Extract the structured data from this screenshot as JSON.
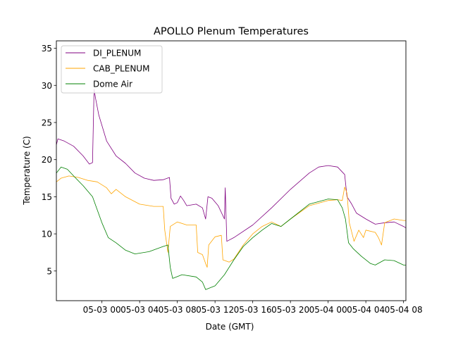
{
  "chart_data": {
    "type": "line",
    "title": "APOLLO Plenum Temperatures",
    "xlabel": "Date (GMT)",
    "ylabel": "Temperature (C)",
    "xlim": [
      "2019-05-02 19:10",
      "2019-05-04 08:15"
    ],
    "ylim": [
      1,
      36
    ],
    "x_ticks": [
      {
        "t": "2019-05-03 00:00",
        "label": "05-03 00"
      },
      {
        "t": "2019-05-03 04:00",
        "label": "05-03 04"
      },
      {
        "t": "2019-05-03 08:00",
        "label": "05-03 08"
      },
      {
        "t": "2019-05-03 12:00",
        "label": "05-03 12"
      },
      {
        "t": "2019-05-03 16:00",
        "label": "05-03 16"
      },
      {
        "t": "2019-05-03 20:00",
        "label": "05-03 20"
      },
      {
        "t": "2019-05-04 00:00",
        "label": "05-04 00"
      },
      {
        "t": "2019-05-04 04:00",
        "label": "05-04 04"
      },
      {
        "t": "2019-05-04 08:00",
        "label": "05-04 08"
      }
    ],
    "y_ticks": [
      5,
      10,
      15,
      20,
      25,
      30,
      35
    ],
    "grid": false,
    "legend_position": "top-left",
    "series": [
      {
        "name": "DI_PLENUM",
        "color": "#800080",
        "points": [
          [
            "2019-05-02 19:10",
            22.0
          ],
          [
            "2019-05-02 19:20",
            22.8
          ],
          [
            "2019-05-02 20:00",
            22.5
          ],
          [
            "2019-05-02 21:00",
            21.8
          ],
          [
            "2019-05-02 22:00",
            20.5
          ],
          [
            "2019-05-02 22:40",
            19.4
          ],
          [
            "2019-05-02 23:00",
            19.6
          ],
          [
            "2019-05-02 23:10",
            29.5
          ],
          [
            "2019-05-02 23:20",
            28.2
          ],
          [
            "2019-05-02 23:40",
            26.0
          ],
          [
            "2019-05-03 00:30",
            22.5
          ],
          [
            "2019-05-03 01:30",
            20.5
          ],
          [
            "2019-05-03 02:30",
            19.5
          ],
          [
            "2019-05-03 03:30",
            18.2
          ],
          [
            "2019-05-03 04:30",
            17.5
          ],
          [
            "2019-05-03 05:30",
            17.2
          ],
          [
            "2019-05-03 06:30",
            17.3
          ],
          [
            "2019-05-03 07:10",
            17.6
          ],
          [
            "2019-05-03 07:20",
            14.8
          ],
          [
            "2019-05-03 07:40",
            14.0
          ],
          [
            "2019-05-03 08:00",
            14.2
          ],
          [
            "2019-05-03 08:20",
            15.1
          ],
          [
            "2019-05-03 08:40",
            14.5
          ],
          [
            "2019-05-03 09:00",
            13.8
          ],
          [
            "2019-05-03 10:00",
            14.0
          ],
          [
            "2019-05-03 10:40",
            13.5
          ],
          [
            "2019-05-03 11:00",
            12.0
          ],
          [
            "2019-05-03 11:15",
            15.0
          ],
          [
            "2019-05-03 11:40",
            14.8
          ],
          [
            "2019-05-03 12:20",
            13.8
          ],
          [
            "2019-05-03 13:00",
            12.0
          ],
          [
            "2019-05-03 13:05",
            16.2
          ],
          [
            "2019-05-03 13:15",
            9.0
          ],
          [
            "2019-05-03 14:00",
            9.5
          ],
          [
            "2019-05-03 16:00",
            11.2
          ],
          [
            "2019-05-03 18:00",
            13.5
          ],
          [
            "2019-05-03 20:00",
            16.0
          ],
          [
            "2019-05-03 22:00",
            18.2
          ],
          [
            "2019-05-03 23:00",
            19.0
          ],
          [
            "2019-05-04 00:00",
            19.2
          ],
          [
            "2019-05-04 01:00",
            19.0
          ],
          [
            "2019-05-04 01:45",
            18.0
          ],
          [
            "2019-05-04 02:00",
            15.0
          ],
          [
            "2019-05-04 02:30",
            14.0
          ],
          [
            "2019-05-04 03:00",
            12.8
          ],
          [
            "2019-05-04 04:00",
            12.0
          ],
          [
            "2019-05-04 05:00",
            11.3
          ],
          [
            "2019-05-04 06:00",
            11.5
          ],
          [
            "2019-05-04 07:00",
            11.6
          ],
          [
            "2019-05-04 08:00",
            11.0
          ],
          [
            "2019-05-04 08:15",
            10.8
          ]
        ]
      },
      {
        "name": "CAB_PLENUM",
        "color": "#FFA500",
        "points": [
          [
            "2019-05-02 19:10",
            17.0
          ],
          [
            "2019-05-02 19:40",
            17.5
          ],
          [
            "2019-05-02 20:30",
            17.8
          ],
          [
            "2019-05-02 21:30",
            17.6
          ],
          [
            "2019-05-02 22:30",
            17.2
          ],
          [
            "2019-05-02 23:30",
            17.0
          ],
          [
            "2019-05-03 00:30",
            16.2
          ],
          [
            "2019-05-03 01:00",
            15.4
          ],
          [
            "2019-05-03 01:30",
            16.0
          ],
          [
            "2019-05-03 02:30",
            15.0
          ],
          [
            "2019-05-03 04:00",
            14.0
          ],
          [
            "2019-05-03 05:30",
            13.7
          ],
          [
            "2019-05-03 06:30",
            13.7
          ],
          [
            "2019-05-03 06:40",
            10.5
          ],
          [
            "2019-05-03 07:00",
            7.5
          ],
          [
            "2019-05-03 07:15",
            11.0
          ],
          [
            "2019-05-03 08:00",
            11.6
          ],
          [
            "2019-05-03 09:00",
            11.2
          ],
          [
            "2019-05-03 10:00",
            11.2
          ],
          [
            "2019-05-03 10:10",
            7.5
          ],
          [
            "2019-05-03 10:40",
            7.2
          ],
          [
            "2019-05-03 11:00",
            6.0
          ],
          [
            "2019-05-03 11:10",
            5.5
          ],
          [
            "2019-05-03 11:20",
            8.5
          ],
          [
            "2019-05-03 12:00",
            9.6
          ],
          [
            "2019-05-03 12:40",
            9.8
          ],
          [
            "2019-05-03 12:50",
            6.5
          ],
          [
            "2019-05-03 13:30",
            6.2
          ],
          [
            "2019-05-03 14:00",
            6.6
          ],
          [
            "2019-05-03 15:00",
            8.5
          ],
          [
            "2019-05-03 16:00",
            10.0
          ],
          [
            "2019-05-03 17:00",
            11.0
          ],
          [
            "2019-05-03 18:00",
            11.6
          ],
          [
            "2019-05-03 19:00",
            11.0
          ],
          [
            "2019-05-03 20:00",
            12.0
          ],
          [
            "2019-05-03 22:00",
            13.8
          ],
          [
            "2019-05-04 00:00",
            14.5
          ],
          [
            "2019-05-04 01:00",
            14.6
          ],
          [
            "2019-05-04 01:30",
            14.5
          ],
          [
            "2019-05-04 01:45",
            16.3
          ],
          [
            "2019-05-04 02:00",
            15.5
          ],
          [
            "2019-05-04 02:15",
            11.5
          ],
          [
            "2019-05-04 02:45",
            9.0
          ],
          [
            "2019-05-04 03:15",
            10.5
          ],
          [
            "2019-05-04 03:45",
            9.5
          ],
          [
            "2019-05-04 04:00",
            10.5
          ],
          [
            "2019-05-04 05:00",
            10.2
          ],
          [
            "2019-05-04 05:20",
            9.5
          ],
          [
            "2019-05-04 05:40",
            8.5
          ],
          [
            "2019-05-04 06:00",
            11.5
          ],
          [
            "2019-05-04 07:00",
            12.0
          ],
          [
            "2019-05-04 08:00",
            11.8
          ],
          [
            "2019-05-04 08:15",
            11.8
          ]
        ]
      },
      {
        "name": "Dome Air",
        "color": "#008000",
        "points": [
          [
            "2019-05-02 19:10",
            18.2
          ],
          [
            "2019-05-02 19:40",
            19.0
          ],
          [
            "2019-05-02 20:20",
            18.7
          ],
          [
            "2019-05-02 21:00",
            17.8
          ],
          [
            "2019-05-02 22:00",
            16.5
          ],
          [
            "2019-05-02 23:00",
            15.0
          ],
          [
            "2019-05-03 00:00",
            11.5
          ],
          [
            "2019-05-03 00:40",
            9.5
          ],
          [
            "2019-05-03 01:30",
            8.8
          ],
          [
            "2019-05-03 02:30",
            7.8
          ],
          [
            "2019-05-03 03:30",
            7.3
          ],
          [
            "2019-05-03 05:00",
            7.6
          ],
          [
            "2019-05-03 06:30",
            8.3
          ],
          [
            "2019-05-03 07:00",
            8.5
          ],
          [
            "2019-05-03 07:15",
            5.5
          ],
          [
            "2019-05-03 07:30",
            4.0
          ],
          [
            "2019-05-03 08:30",
            4.5
          ],
          [
            "2019-05-03 10:00",
            4.2
          ],
          [
            "2019-05-03 10:40",
            3.5
          ],
          [
            "2019-05-03 11:00",
            2.5
          ],
          [
            "2019-05-03 12:00",
            3.0
          ],
          [
            "2019-05-03 13:00",
            4.5
          ],
          [
            "2019-05-03 14:00",
            6.5
          ],
          [
            "2019-05-03 15:00",
            8.3
          ],
          [
            "2019-05-03 16:00",
            9.5
          ],
          [
            "2019-05-03 17:00",
            10.5
          ],
          [
            "2019-05-03 18:00",
            11.4
          ],
          [
            "2019-05-03 19:00",
            11.0
          ],
          [
            "2019-05-03 20:00",
            12.0
          ],
          [
            "2019-05-03 22:00",
            14.0
          ],
          [
            "2019-05-04 00:00",
            14.7
          ],
          [
            "2019-05-04 01:00",
            14.6
          ],
          [
            "2019-05-04 01:30",
            13.5
          ],
          [
            "2019-05-04 01:50",
            12.0
          ],
          [
            "2019-05-04 02:10",
            8.8
          ],
          [
            "2019-05-04 02:40",
            8.0
          ],
          [
            "2019-05-04 03:30",
            7.0
          ],
          [
            "2019-05-04 04:30",
            6.0
          ],
          [
            "2019-05-04 05:00",
            5.8
          ],
          [
            "2019-05-04 06:00",
            6.5
          ],
          [
            "2019-05-04 07:00",
            6.4
          ],
          [
            "2019-05-04 08:00",
            5.8
          ],
          [
            "2019-05-04 08:15",
            5.8
          ]
        ]
      }
    ]
  }
}
